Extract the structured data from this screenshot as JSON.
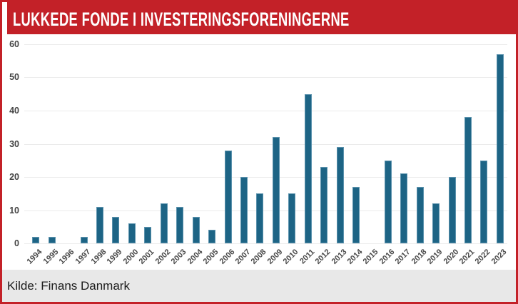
{
  "header": {
    "title": "LUKKEDE FONDE I INVESTERINGSFORENINGERNE",
    "background": "#c32128",
    "text_color": "#ffffff"
  },
  "footer": {
    "source_label": "Kilde: Finans Danmark",
    "background": "#e8e8e8"
  },
  "colors": {
    "accent_red": "#c32128",
    "bar": "#1d6485",
    "bar_edge": "#5b92ad",
    "gridline": "#ebebeb",
    "axis_text": "#444444"
  },
  "chart_data": {
    "type": "bar",
    "title": "LUKKEDE FONDE I INVESTERINGSFORENINGERNE",
    "categories": [
      "1994",
      "1995",
      "1996",
      "1997",
      "1998",
      "1999",
      "2000",
      "2001",
      "2002",
      "2003",
      "2004",
      "2005",
      "2006",
      "2007",
      "2008",
      "2009",
      "2010",
      "2011",
      "2012",
      "2013",
      "2014",
      "2015",
      "2016",
      "2017",
      "2018",
      "2019",
      "2020",
      "2021",
      "2022",
      "2023"
    ],
    "values": [
      2,
      2,
      0,
      2,
      11,
      8,
      6,
      5,
      12,
      11,
      8,
      4,
      28,
      20,
      15,
      32,
      15,
      45,
      23,
      29,
      17,
      0,
      25,
      21,
      17,
      12,
      20,
      38,
      25,
      57
    ],
    "xlabel": "",
    "ylabel": "",
    "ylim": [
      0,
      60
    ],
    "ytick_step": 10,
    "grid": true,
    "legend_position": "none",
    "source": "Kilde: Finans Danmark"
  }
}
